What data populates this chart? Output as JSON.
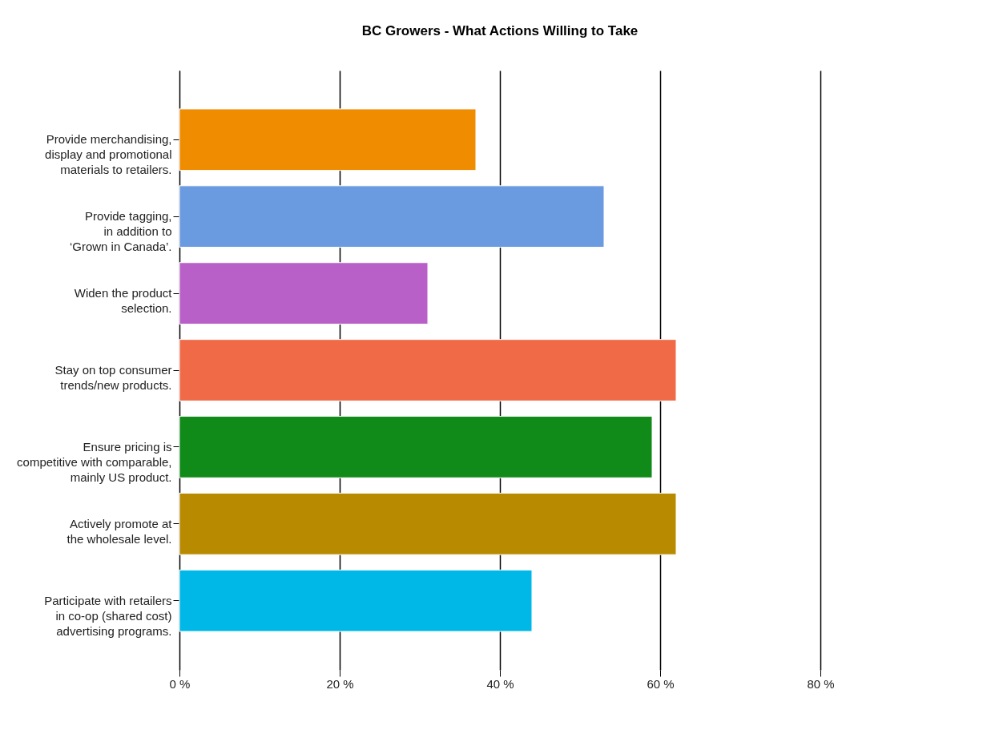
{
  "chart_data": {
    "type": "bar",
    "orientation": "horizontal",
    "title": "BC Growers - What Actions Willing to Take",
    "categories": [
      "Provide merchandising,\ndisplay and promotional\nmaterials to retailers.",
      "Provide tagging,\nin addition to\n‘Grown in Canada’.",
      "Widen the product\nselection.",
      "Stay on top consumer\ntrends/new products.",
      "Ensure pricing is\ncompetitive with comparable,\nmainly US product.",
      "Actively promote at\nthe wholesale level.",
      "Participate with retailers\nin co-op (shared cost)\nadvertising programs."
    ],
    "values": [
      37,
      53,
      31,
      62,
      59,
      62,
      44
    ],
    "colors": [
      "#f08c00",
      "#6a9ae0",
      "#b860c8",
      "#f06a48",
      "#108a18",
      "#b88a00",
      "#00b8e8"
    ],
    "xlim": [
      0,
      80
    ],
    "xticks": [
      {
        "value": 0,
        "label": "0 %"
      },
      {
        "value": 20,
        "label": "20 %"
      },
      {
        "value": 40,
        "label": "40 %"
      },
      {
        "value": 60,
        "label": "60 %"
      },
      {
        "value": 80,
        "label": "80 %"
      }
    ],
    "grid": "x"
  }
}
